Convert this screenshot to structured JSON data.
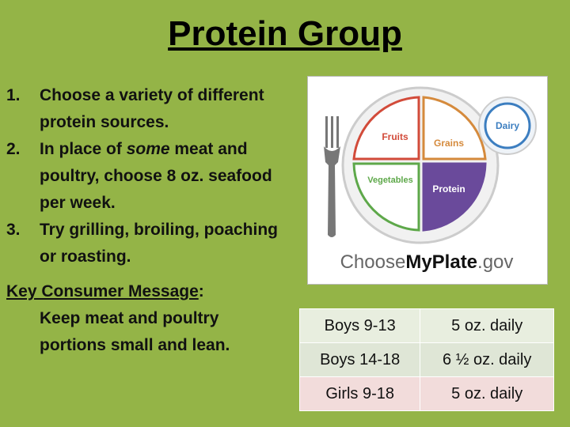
{
  "header": {
    "title": "Protein Group"
  },
  "list": {
    "items": [
      {
        "number": "1.",
        "parts": [
          "Choose a variety of different protein sources."
        ]
      },
      {
        "number": "2.",
        "parts": [
          "In place of ",
          "some",
          " meat and poultry, choose 8 oz. seafood per week."
        ]
      },
      {
        "number": "3.",
        "parts": [
          "Try grilling, broiling, poaching or roasting."
        ]
      }
    ]
  },
  "key_message": {
    "label": "Key Consumer Message",
    "colon": ":",
    "text": "Keep meat and poultry portions small and lean."
  },
  "plate": {
    "fruits": "Fruits",
    "grains": "Grains",
    "vegetables": "Vegetables",
    "protein": "Protein",
    "dairy": "Dairy",
    "logo": [
      "Choose",
      "MyPlate",
      ".gov"
    ]
  },
  "table": {
    "rows": [
      [
        "Boys 9-13",
        "5 oz. daily"
      ],
      [
        "Boys 14-18",
        "6 ½ oz. daily"
      ],
      [
        "Girls 9-18",
        "5 oz. daily"
      ]
    ]
  }
}
